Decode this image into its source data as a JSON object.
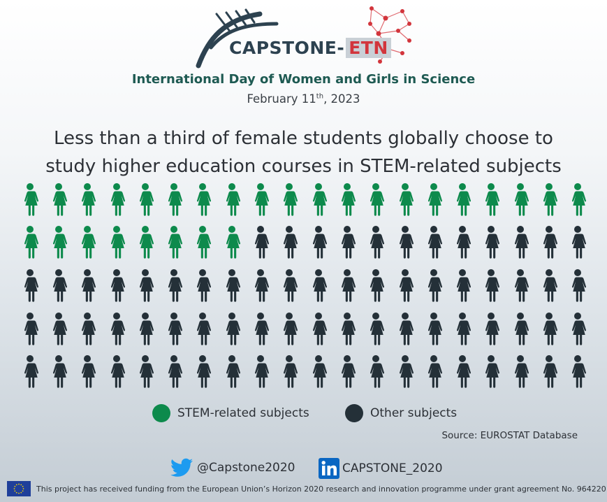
{
  "logo": {
    "name_part1": "CAPSTONE-",
    "name_part2": "ETN"
  },
  "event": {
    "title": "International Day of Women and Girls in Science",
    "date_prefix": "February 11",
    "date_sup": "th",
    "date_suffix": ", 2023"
  },
  "headline": {
    "line1": "Less than a third of female students globally choose to",
    "line2": "study higher education courses in STEM-related subjects"
  },
  "chart_data": {
    "type": "pictogram",
    "total_icons": 100,
    "rows": 5,
    "columns": 20,
    "series": [
      {
        "name": "STEM-related subjects",
        "value": 28,
        "color": "#0d8a4c"
      },
      {
        "name": "Other subjects",
        "value": 72,
        "color": "#243038"
      }
    ]
  },
  "legend": {
    "items": [
      {
        "label": "STEM-related subjects",
        "color": "#0d8a4c"
      },
      {
        "label": "Other subjects",
        "color": "#243038"
      }
    ]
  },
  "source": "Source:  EUROSTAT Database",
  "social": {
    "twitter_handle": "@Capstone2020",
    "twitter_icon": "twitter-bird-icon",
    "linkedin_handle": "CAPSTONE_2020",
    "linkedin_icon": "linkedin-icon"
  },
  "footer": {
    "text": "This project has received funding from the European Union’s Horizon 2020 research and innovation programme under grant agreement  No. 964220",
    "flag_icon": "eu-flag-icon"
  },
  "colors": {
    "title": "#1e5a52",
    "stem": "#0d8a4c",
    "other": "#243038"
  }
}
